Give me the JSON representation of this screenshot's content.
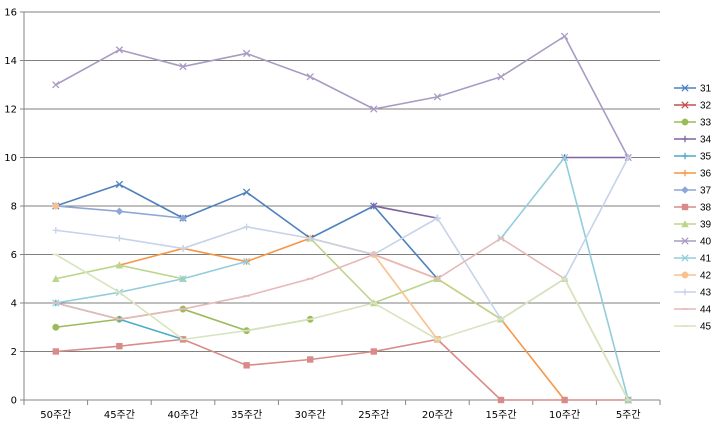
{
  "chart_data": {
    "type": "line",
    "title": "",
    "xlabel": "",
    "ylabel": "",
    "ylim": [
      0,
      16
    ],
    "yticks": [
      0,
      2,
      4,
      6,
      8,
      10,
      12,
      14,
      16
    ],
    "grid": true,
    "legend_position": "right",
    "categories": [
      "50주간",
      "45주간",
      "40주간",
      "35주간",
      "30주간",
      "25주간",
      "20주간",
      "15주간",
      "10주간",
      "5주간"
    ],
    "series": [
      {
        "name": "31",
        "color": "#4F81BD",
        "marker": "x",
        "values": [
          8.0,
          8.89,
          7.5,
          8.57,
          6.67,
          8.0,
          5.0,
          null,
          null,
          null
        ]
      },
      {
        "name": "32",
        "color": "#C0504D",
        "marker": "x",
        "values": [
          null,
          null,
          null,
          null,
          6.67,
          null,
          null,
          null,
          null,
          null
        ]
      },
      {
        "name": "33",
        "color": "#9BBB59",
        "marker": "circle",
        "values": [
          3.0,
          3.33,
          3.75,
          2.86,
          3.33,
          null,
          null,
          null,
          null,
          null
        ]
      },
      {
        "name": "34",
        "color": "#8064A2",
        "marker": "plus",
        "values": [
          null,
          null,
          null,
          null,
          null,
          8.0,
          7.5,
          null,
          10.0,
          10.0
        ]
      },
      {
        "name": "35",
        "color": "#4BACC6",
        "marker": "plus",
        "values": [
          4.0,
          3.33,
          2.5,
          null,
          null,
          null,
          null,
          null,
          null,
          null
        ]
      },
      {
        "name": "36",
        "color": "#F79646",
        "marker": "plus",
        "values": [
          null,
          5.56,
          6.25,
          5.71,
          6.67,
          6.0,
          5.0,
          3.33,
          0.0,
          null
        ]
      },
      {
        "name": "37",
        "color": "#8EA7D6",
        "marker": "diamond",
        "values": [
          8.0,
          7.78,
          7.5,
          null,
          null,
          null,
          null,
          null,
          null,
          null
        ]
      },
      {
        "name": "38",
        "color": "#D98B89",
        "marker": "square",
        "values": [
          2.0,
          2.22,
          2.5,
          1.43,
          1.67,
          2.0,
          2.5,
          0.0,
          0.0,
          0.0
        ]
      },
      {
        "name": "39",
        "color": "#BCD58A",
        "marker": "triangle",
        "values": [
          5.0,
          5.56,
          5.0,
          null,
          6.67,
          4.0,
          5.0,
          3.33,
          5.0,
          0.0
        ]
      },
      {
        "name": "40",
        "color": "#A99BC3",
        "marker": "x",
        "values": [
          13.0,
          14.44,
          13.75,
          14.29,
          13.33,
          12.0,
          12.5,
          13.33,
          15.0,
          10.0
        ]
      },
      {
        "name": "41",
        "color": "#92CDDC",
        "marker": "x",
        "values": [
          4.0,
          4.44,
          5.0,
          5.71,
          null,
          null,
          null,
          6.67,
          10.0,
          0.0
        ]
      },
      {
        "name": "42",
        "color": "#FAC090",
        "marker": "circle",
        "values": [
          8.0,
          null,
          null,
          null,
          null,
          6.0,
          2.5,
          null,
          null,
          null
        ]
      },
      {
        "name": "43",
        "color": "#C5D3EB",
        "marker": "plus",
        "values": [
          7.0,
          6.67,
          6.25,
          7.14,
          6.67,
          6.0,
          7.5,
          3.33,
          5.0,
          10.0
        ]
      },
      {
        "name": "44",
        "color": "#E6B9B8",
        "marker": "dash",
        "values": [
          4.0,
          3.33,
          3.75,
          4.29,
          5.0,
          6.0,
          5.0,
          6.67,
          5.0,
          null
        ]
      },
      {
        "name": "45",
        "color": "#D7E4BD",
        "marker": "dash",
        "values": [
          6.0,
          4.44,
          2.5,
          2.86,
          3.33,
          4.0,
          2.5,
          3.33,
          5.0,
          0.0
        ]
      }
    ]
  }
}
